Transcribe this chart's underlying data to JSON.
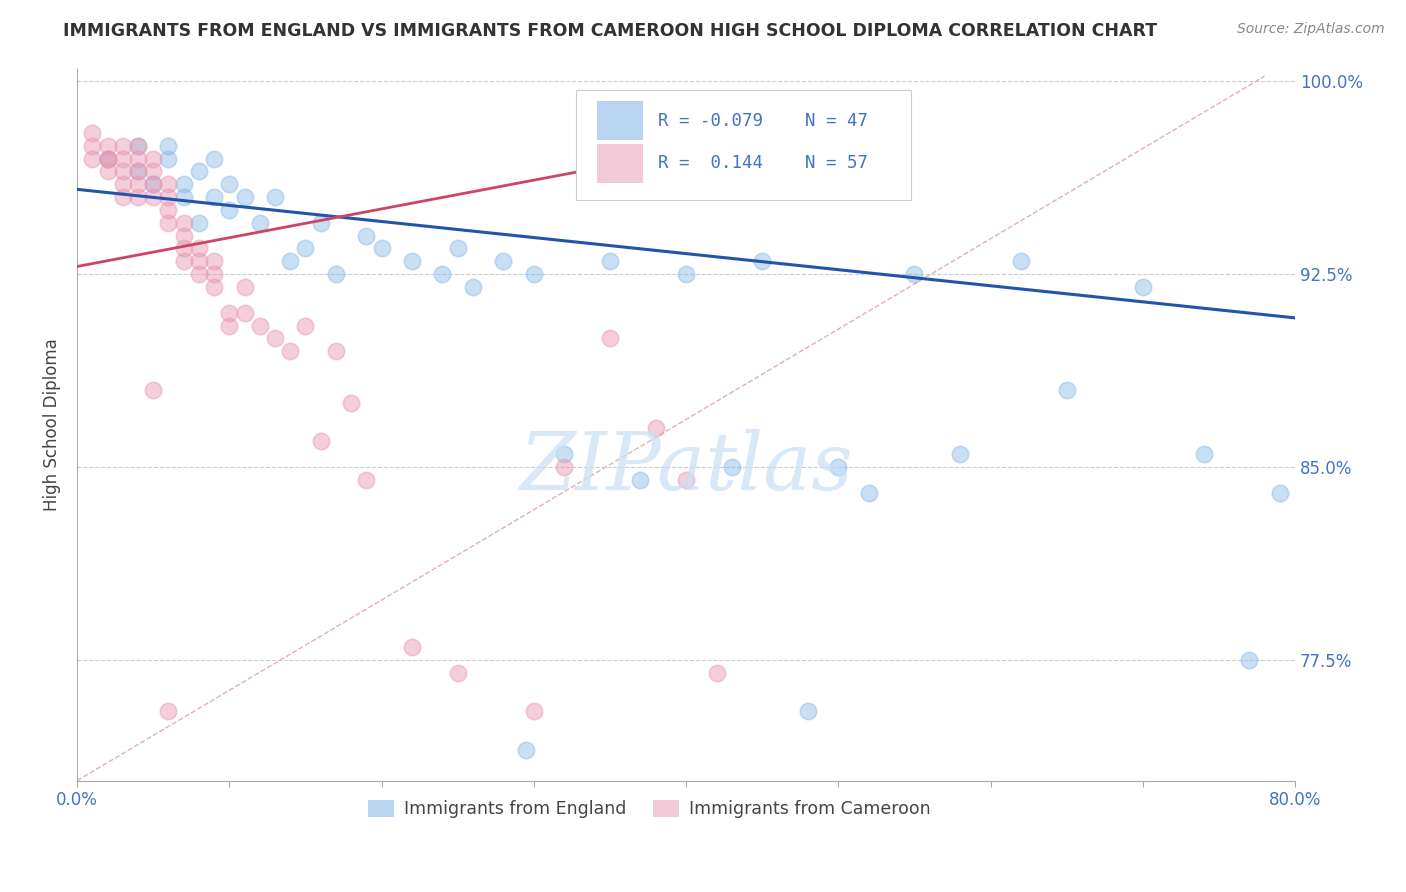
{
  "title": "IMMIGRANTS FROM ENGLAND VS IMMIGRANTS FROM CAMEROON HIGH SCHOOL DIPLOMA CORRELATION CHART",
  "source": "Source: ZipAtlas.com",
  "ylabel": "High School Diploma",
  "xlim": [
    0.0,
    0.8
  ],
  "ylim": [
    0.728,
    1.005
  ],
  "yticks": [
    0.775,
    0.85,
    0.925,
    1.0
  ],
  "yticklabels": [
    "77.5%",
    "85.0%",
    "92.5%",
    "100.0%"
  ],
  "watermark": "ZIPatlas",
  "legend_R_england": "-0.079",
  "legend_N_england": "47",
  "legend_R_cameroon": "0.144",
  "legend_N_cameroon": "57",
  "legend_label_england": "Immigrants from England",
  "legend_label_cameroon": "Immigrants from Cameroon",
  "england_scatter_x": [
    0.02,
    0.04,
    0.04,
    0.05,
    0.06,
    0.07,
    0.07,
    0.08,
    0.08,
    0.09,
    0.09,
    0.1,
    0.1,
    0.11,
    0.12,
    0.13,
    0.14,
    0.15,
    0.16,
    0.17,
    0.19,
    0.2,
    0.22,
    0.24,
    0.25,
    0.26,
    0.28,
    0.3,
    0.32,
    0.35,
    0.37,
    0.4,
    0.43,
    0.45,
    0.52,
    0.55,
    0.58,
    0.62,
    0.65,
    0.7,
    0.74,
    0.77,
    0.79,
    0.295,
    0.48,
    0.06,
    0.5
  ],
  "england_scatter_y": [
    0.97,
    0.965,
    0.975,
    0.96,
    0.975,
    0.955,
    0.96,
    0.965,
    0.945,
    0.955,
    0.97,
    0.95,
    0.96,
    0.955,
    0.945,
    0.955,
    0.93,
    0.935,
    0.945,
    0.925,
    0.94,
    0.935,
    0.93,
    0.925,
    0.935,
    0.92,
    0.93,
    0.925,
    0.855,
    0.93,
    0.845,
    0.925,
    0.85,
    0.93,
    0.84,
    0.925,
    0.855,
    0.93,
    0.88,
    0.92,
    0.855,
    0.775,
    0.84,
    0.74,
    0.755,
    0.97,
    0.85
  ],
  "cameroon_scatter_x": [
    0.01,
    0.01,
    0.01,
    0.02,
    0.02,
    0.02,
    0.02,
    0.03,
    0.03,
    0.03,
    0.03,
    0.03,
    0.04,
    0.04,
    0.04,
    0.04,
    0.04,
    0.05,
    0.05,
    0.05,
    0.05,
    0.06,
    0.06,
    0.06,
    0.06,
    0.07,
    0.07,
    0.07,
    0.07,
    0.08,
    0.08,
    0.08,
    0.09,
    0.09,
    0.09,
    0.1,
    0.1,
    0.11,
    0.11,
    0.12,
    0.13,
    0.14,
    0.15,
    0.16,
    0.17,
    0.18,
    0.19,
    0.22,
    0.25,
    0.3,
    0.32,
    0.35,
    0.38,
    0.4,
    0.42,
    0.05,
    0.06
  ],
  "cameroon_scatter_y": [
    0.98,
    0.975,
    0.97,
    0.975,
    0.97,
    0.965,
    0.97,
    0.975,
    0.97,
    0.965,
    0.96,
    0.955,
    0.975,
    0.97,
    0.965,
    0.955,
    0.96,
    0.97,
    0.965,
    0.96,
    0.955,
    0.96,
    0.955,
    0.95,
    0.945,
    0.945,
    0.94,
    0.935,
    0.93,
    0.935,
    0.93,
    0.925,
    0.93,
    0.925,
    0.92,
    0.91,
    0.905,
    0.92,
    0.91,
    0.905,
    0.9,
    0.895,
    0.905,
    0.86,
    0.895,
    0.875,
    0.845,
    0.78,
    0.77,
    0.755,
    0.85,
    0.9,
    0.865,
    0.845,
    0.77,
    0.88,
    0.755
  ],
  "england_line_x": [
    0.0,
    0.8
  ],
  "england_line_y": [
    0.958,
    0.908
  ],
  "cameroon_line_x": [
    0.0,
    0.42
  ],
  "cameroon_line_y": [
    0.928,
    0.975
  ],
  "dashed_line_x": [
    0.0,
    0.78
  ],
  "dashed_line_y": [
    0.728,
    1.002
  ],
  "england_scatter_color": "#89b8e8",
  "cameroon_scatter_color": "#e896b0",
  "england_line_color": "#2255aa",
  "cameroon_line_color": "#cc4466",
  "dashed_line_color": "#e0b0bc",
  "bg_color": "#ffffff",
  "title_color": "#333333",
  "source_color": "#888888",
  "tick_color": "#4472c4",
  "grid_color": "#cccccc",
  "axis_line_color": "#aaaaaa",
  "watermark_color": "#c8dff5",
  "xtick_positions": [
    0.0,
    0.1,
    0.2,
    0.3,
    0.4,
    0.5,
    0.6,
    0.7,
    0.8
  ],
  "xtick_labels_show": {
    "0.0": "0.0%",
    "0.8": "80.0%"
  }
}
